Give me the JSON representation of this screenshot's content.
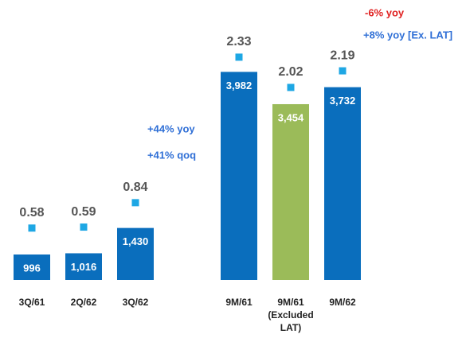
{
  "chart_data": {
    "type": "bar",
    "categories": [
      "3Q/61",
      "2Q/62",
      "3Q/62",
      null,
      "9M/61",
      "9M/61\n(Excluded\nLAT)",
      "9M/62"
    ],
    "ylim": [
      580,
      4000
    ],
    "y2lim": [
      0,
      2.5
    ],
    "series": [
      {
        "values": [
          996,
          1016,
          1430,
          null,
          3982,
          3454,
          3732
        ],
        "value_labels": [
          "996",
          "1,016",
          "1,430",
          null,
          "3,982",
          "3,454",
          "3,732"
        ],
        "colors": [
          "#0a6ebd",
          "#0a6ebd",
          "#0a6ebd",
          null,
          "#0a6ebd",
          "#9bbb59",
          "#0a6ebd"
        ]
      },
      {
        "axis": "y2",
        "color": "#1ea7e4",
        "values": [
          0.58,
          0.59,
          0.84,
          null,
          2.33,
          2.02,
          2.19
        ]
      }
    ],
    "annotations": [
      {
        "text": "+44% yoy",
        "color": "#2f6fd6"
      },
      {
        "text": "+41% qoq",
        "color": "#2f6fd6"
      },
      {
        "text": "-6% yoy",
        "color": "#e02020"
      },
      {
        "text": "+8% yoy [Ex. LAT]",
        "color": "#2f6fd6"
      }
    ]
  }
}
